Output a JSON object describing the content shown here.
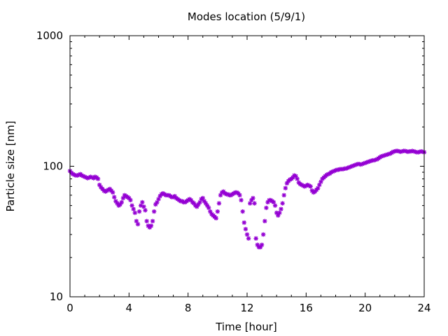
{
  "chart_data": {
    "type": "scatter",
    "title": "Modes location (5/9/1)",
    "xlabel": "Time [hour]",
    "ylabel": "Particle size [nm]",
    "xlim": [
      0,
      24
    ],
    "ylim": [
      10,
      1000
    ],
    "yscale": "log",
    "xticks": [
      0,
      4,
      8,
      12,
      16,
      20,
      24
    ],
    "xtick_labels": [
      "0",
      "4",
      "8",
      "12",
      "16",
      "20",
      "24"
    ],
    "yticks": [
      10,
      100,
      1000
    ],
    "ytick_labels": [
      "10",
      "100",
      "1000"
    ],
    "grid": false,
    "legend": "none",
    "marker_color": "#9400d3",
    "series": [
      {
        "x": [
          0.0,
          0.1,
          0.2,
          0.3,
          0.4,
          0.5,
          0.6,
          0.7,
          0.8,
          0.9,
          1.0,
          1.1,
          1.2,
          1.3,
          1.4,
          1.5,
          1.6,
          1.7,
          1.8,
          1.9,
          2.0,
          2.1,
          2.2,
          2.3,
          2.4,
          2.5,
          2.6,
          2.7,
          2.8,
          2.9,
          3.0,
          3.1,
          3.2,
          3.3,
          3.4,
          3.5,
          3.6,
          3.7,
          3.8,
          3.9,
          4.0,
          4.1,
          4.2,
          4.3,
          4.4,
          4.5,
          4.6,
          4.7,
          4.8,
          4.9,
          5.0,
          5.1,
          5.2,
          5.3,
          5.4,
          5.5,
          5.6,
          5.7,
          5.8,
          5.9,
          6.0,
          6.1,
          6.2,
          6.3,
          6.4,
          6.5,
          6.6,
          6.7,
          6.8,
          6.9,
          7.0,
          7.1,
          7.2,
          7.3,
          7.4,
          7.5,
          7.6,
          7.7,
          7.8,
          7.9,
          8.0,
          8.1,
          8.2,
          8.3,
          8.4,
          8.5,
          8.6,
          8.7,
          8.8,
          8.9,
          9.0,
          9.1,
          9.2,
          9.3,
          9.4,
          9.5,
          9.6,
          9.7,
          9.8,
          9.9,
          10.0,
          10.1,
          10.2,
          10.3,
          10.4,
          10.5,
          10.6,
          10.7,
          10.8,
          10.9,
          11.0,
          11.1,
          11.2,
          11.3,
          11.4,
          11.5,
          11.6,
          11.7,
          11.8,
          11.9,
          12.0,
          12.1,
          12.2,
          12.3,
          12.4,
          12.5,
          12.6,
          12.7,
          12.8,
          12.9,
          13.0,
          13.1,
          13.2,
          13.3,
          13.4,
          13.5,
          13.6,
          13.7,
          13.8,
          13.9,
          14.0,
          14.1,
          14.2,
          14.3,
          14.4,
          14.5,
          14.6,
          14.7,
          14.8,
          14.9,
          15.0,
          15.1,
          15.2,
          15.3,
          15.4,
          15.5,
          15.6,
          15.7,
          15.8,
          15.9,
          16.0,
          16.1,
          16.2,
          16.3,
          16.4,
          16.5,
          16.6,
          16.7,
          16.8,
          16.9,
          17.0,
          17.1,
          17.2,
          17.3,
          17.4,
          17.5,
          17.6,
          17.7,
          17.8,
          17.9,
          18.0,
          18.1,
          18.2,
          18.3,
          18.4,
          18.5,
          18.6,
          18.7,
          18.8,
          18.9,
          19.0,
          19.1,
          19.2,
          19.3,
          19.4,
          19.5,
          19.6,
          19.7,
          19.8,
          19.9,
          20.0,
          20.1,
          20.2,
          20.3,
          20.4,
          20.5,
          20.6,
          20.7,
          20.8,
          20.9,
          21.0,
          21.1,
          21.2,
          21.3,
          21.4,
          21.5,
          21.6,
          21.7,
          21.8,
          21.9,
          22.0,
          22.1,
          22.2,
          22.3,
          22.4,
          22.5,
          22.6,
          22.7,
          22.8,
          22.9,
          23.0,
          23.1,
          23.2,
          23.3,
          23.4,
          23.5,
          23.6,
          23.7,
          23.8,
          23.9,
          24.0
        ],
        "values": [
          92,
          89,
          87,
          86,
          85,
          85,
          86,
          87,
          85,
          84,
          83,
          82,
          81,
          82,
          83,
          82,
          81,
          83,
          82,
          80,
          72,
          69,
          67,
          65,
          64,
          65,
          66,
          67,
          65,
          63,
          58,
          54,
          52,
          50,
          51,
          53,
          57,
          60,
          59,
          58,
          57,
          55,
          50,
          47,
          44,
          38,
          36,
          45,
          50,
          53,
          49,
          46,
          38,
          35,
          34,
          35,
          38,
          45,
          51,
          53,
          56,
          59,
          61,
          62,
          61,
          60,
          60,
          60,
          59,
          58,
          58,
          59,
          57,
          56,
          55,
          54,
          54,
          53,
          53,
          54,
          55,
          56,
          55,
          53,
          52,
          50,
          49,
          51,
          53,
          56,
          57,
          54,
          52,
          50,
          48,
          45,
          43,
          42,
          41,
          40,
          45,
          52,
          60,
          63,
          64,
          62,
          61,
          61,
          60,
          60,
          61,
          62,
          63,
          63,
          62,
          60,
          55,
          45,
          37,
          33,
          30,
          28,
          52,
          55,
          57,
          52,
          28,
          25,
          24,
          24,
          25,
          30,
          38,
          48,
          53,
          55,
          55,
          54,
          53,
          50,
          44,
          42,
          44,
          47,
          52,
          60,
          68,
          74,
          77,
          79,
          80,
          82,
          85,
          84,
          80,
          75,
          73,
          72,
          71,
          70,
          71,
          72,
          71,
          70,
          65,
          63,
          64,
          66,
          68,
          72,
          76,
          80,
          82,
          84,
          86,
          87,
          88,
          90,
          91,
          92,
          93,
          94,
          94,
          95,
          95,
          95,
          96,
          96,
          97,
          98,
          99,
          100,
          101,
          102,
          103,
          104,
          104,
          103,
          104,
          105,
          106,
          107,
          108,
          109,
          110,
          111,
          111,
          112,
          113,
          115,
          117,
          119,
          120,
          121,
          122,
          123,
          124,
          125,
          127,
          129,
          130,
          131,
          131,
          130,
          129,
          130,
          131,
          131,
          130,
          129,
          130,
          130,
          131,
          130,
          129,
          128,
          128,
          129,
          130,
          129,
          128
        ]
      }
    ]
  }
}
